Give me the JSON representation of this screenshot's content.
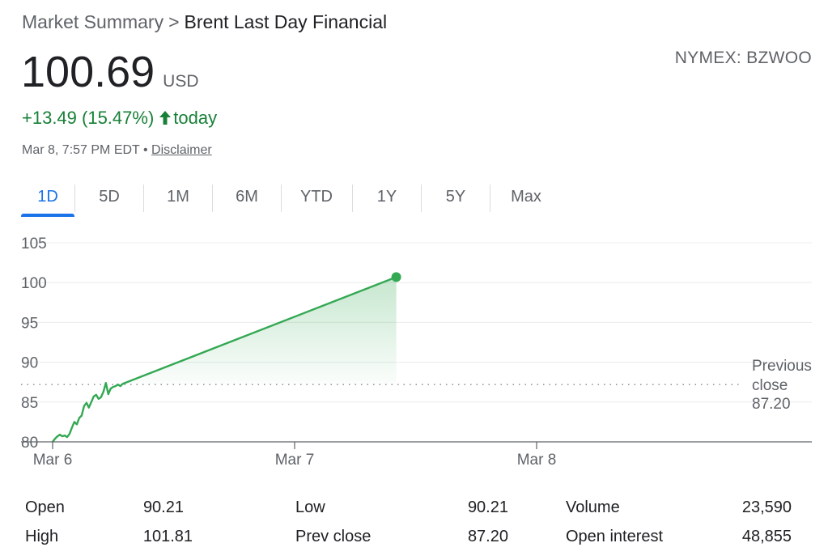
{
  "breadcrumb": {
    "parent": "Market Summary",
    "separator": ">",
    "current": "Brent Last Day Financial"
  },
  "exchange": "NYMEX: BZWOO",
  "price": {
    "value": "100.69",
    "currency": "USD"
  },
  "change": {
    "text": "+13.49 (15.47%)",
    "suffix": "today",
    "color": "#188038",
    "direction": "up-arrow-icon"
  },
  "timestamp": {
    "text": "Mar 8, 7:57 PM EDT",
    "separator": "•",
    "disclaimer": "Disclaimer"
  },
  "tabs": [
    "1D",
    "5D",
    "1M",
    "6M",
    "YTD",
    "1Y",
    "5Y",
    "Max"
  ],
  "active_tab": "1D",
  "colors": {
    "accent": "#1a73e8",
    "line": "#34a853",
    "text_secondary": "#5f6368"
  },
  "chart_data": {
    "type": "line",
    "y_ticks": [
      "105",
      "100",
      "95",
      "90",
      "85",
      "80"
    ],
    "ylim": [
      80,
      105
    ],
    "x_ticks": [
      "Mar 6",
      "Mar 7",
      "Mar 8"
    ],
    "previous_close": {
      "label_line1": "Previous",
      "label_line2": "close",
      "value": 87.2,
      "value_label": "87.20"
    },
    "series": [
      {
        "points": [
          [
            0.0,
            80.0
          ],
          [
            0.01,
            80.4
          ],
          [
            0.02,
            80.7
          ],
          [
            0.03,
            80.9
          ],
          [
            0.04,
            80.7
          ],
          [
            0.05,
            80.8
          ],
          [
            0.06,
            80.6
          ],
          [
            0.07,
            81.0
          ],
          [
            0.08,
            81.8
          ],
          [
            0.09,
            82.5
          ],
          [
            0.1,
            82.2
          ],
          [
            0.11,
            83.0
          ],
          [
            0.12,
            83.3
          ],
          [
            0.13,
            84.5
          ],
          [
            0.14,
            84.9
          ],
          [
            0.15,
            84.3
          ],
          [
            0.16,
            85.0
          ],
          [
            0.17,
            85.7
          ],
          [
            0.18,
            85.9
          ],
          [
            0.19,
            85.4
          ],
          [
            0.2,
            85.6
          ],
          [
            0.21,
            86.3
          ],
          [
            0.22,
            87.4
          ],
          [
            0.23,
            86.0
          ],
          [
            0.24,
            86.7
          ],
          [
            0.25,
            86.9
          ],
          [
            0.26,
            87.0
          ],
          [
            0.27,
            87.2
          ],
          [
            0.28,
            87.0
          ],
          [
            0.29,
            87.3
          ],
          [
            1.42,
            100.69
          ]
        ],
        "last_point": {
          "x": 1.42,
          "y": 100.69
        }
      }
    ]
  },
  "stats": [
    {
      "label": "Open",
      "value": "90.21"
    },
    {
      "label": "High",
      "value": "101.81"
    },
    {
      "label": "Low",
      "value": "90.21"
    },
    {
      "label": "Prev close",
      "value": "87.20"
    },
    {
      "label": "Volume",
      "value": "23,590"
    },
    {
      "label": "Open interest",
      "value": "48,855"
    }
  ]
}
